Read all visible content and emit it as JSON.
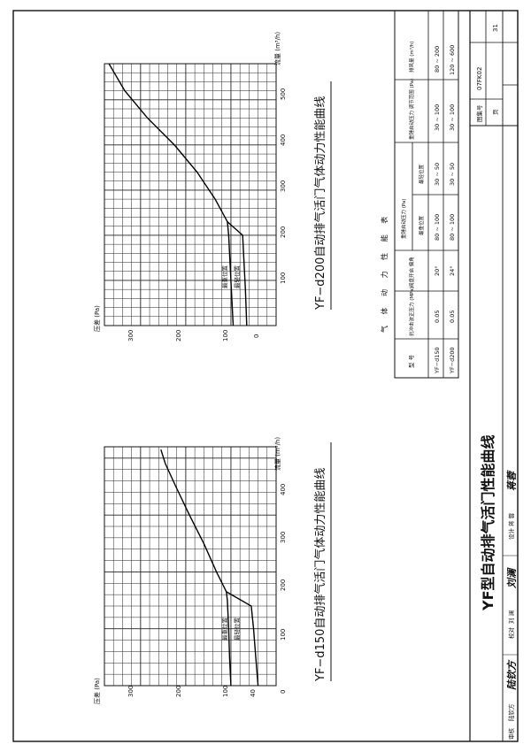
{
  "charts": {
    "top": {
      "title": "YF−d200自动排气活门气体动力性能曲线",
      "ylabel": "压差 (Pa)",
      "xlabel": "流量 (m³/h)",
      "yticks": [
        "300",
        "200",
        "100",
        "0"
      ],
      "xticks": [
        "100",
        "200",
        "300",
        "400",
        "500"
      ],
      "curve_heaviest": "最重位置",
      "curve_lightest": "最轻位置"
    },
    "bottom": {
      "title": "YF−d150自动排气活门气体动力性能曲线",
      "ylabel": "压差 (Pa)",
      "xlabel": "流量 (m³/h)",
      "yticks": [
        "300",
        "200",
        "100",
        "40",
        "0"
      ],
      "xticks": [
        "100",
        "200",
        "300",
        "400"
      ],
      "curve_heaviest": "最重位置",
      "curve_lightest": "最轻位置"
    }
  },
  "chart_data": [
    {
      "type": "line",
      "title": "YF−d200自动排气活门气体动力性能曲线",
      "xlabel": "流量 (m³/h)",
      "ylabel": "压差 (Pa)",
      "xlim": [
        0,
        580
      ],
      "ylim": [
        0,
        380
      ],
      "series": [
        {
          "name": "最重位置",
          "x": [
            0,
            100,
            200,
            230,
            280,
            340,
            400,
            460,
            520,
            580
          ],
          "y": [
            95,
            100,
            105,
            108,
            135,
            175,
            225,
            285,
            335,
            370
          ]
        },
        {
          "name": "最轻位置",
          "x": [
            0,
            80,
            160,
            200,
            230
          ],
          "y": [
            65,
            68,
            72,
            74,
            108
          ]
        }
      ]
    },
    {
      "type": "line",
      "title": "YF−d150自动排气活门气体动力性能曲线",
      "xlabel": "流量 (m³/h)",
      "ylabel": "压差 (Pa)",
      "xlim": [
        0,
        420
      ],
      "ylim": [
        0,
        380
      ],
      "series": [
        {
          "name": "最重位置",
          "x": [
            0,
            50,
            100,
            150,
            165,
            200,
            250,
            300,
            350,
            390,
            415
          ],
          "y": [
            100,
            103,
            105,
            108,
            110,
            132,
            160,
            192,
            222,
            245,
            255
          ]
        },
        {
          "name": "最轻位置",
          "x": [
            0,
            50,
            100,
            140,
            165
          ],
          "y": [
            40,
            45,
            50,
            55,
            110
          ]
        }
      ]
    }
  ],
  "table": {
    "caption": "气 体 动 力 性 能 表",
    "headers": {
      "model": "型 号",
      "pressure": "抗冲击波正压力 (MPa)",
      "angle": "阀盘开启 偏角",
      "heavy_group": "重锤启动压力 (Pa)",
      "heaviest": "最重位置",
      "lightest": "最轻位置",
      "range": "重锤启动压力 调节范围 (Pa)",
      "flow": "排风量 (m³/h)"
    },
    "rows": [
      {
        "model": "YF−d150",
        "pressure": "0.05",
        "angle": "20°",
        "heaviest": "80 ~ 100",
        "lightest": "30 ~ 50",
        "range": "30 ~ 100",
        "flow": "80 ~ 200"
      },
      {
        "model": "YF−d200",
        "pressure": "0.05",
        "angle": "24°",
        "heaviest": "80 ~ 100",
        "lightest": "30 ~ 50",
        "range": "30 ~ 100",
        "flow": "120 ~ 600"
      }
    ]
  },
  "title_block": {
    "drawing_title": "YF型自动排气活门性能曲线",
    "atlas_label": "图集号",
    "atlas_no": "07FK02",
    "page_label": "页",
    "page_no": "31",
    "review_label": "审核",
    "review_name": "陆钦方",
    "check_label": "校对",
    "check_name": "刘 澜",
    "design_label": "设计",
    "design_name": "蒋 蓉"
  }
}
